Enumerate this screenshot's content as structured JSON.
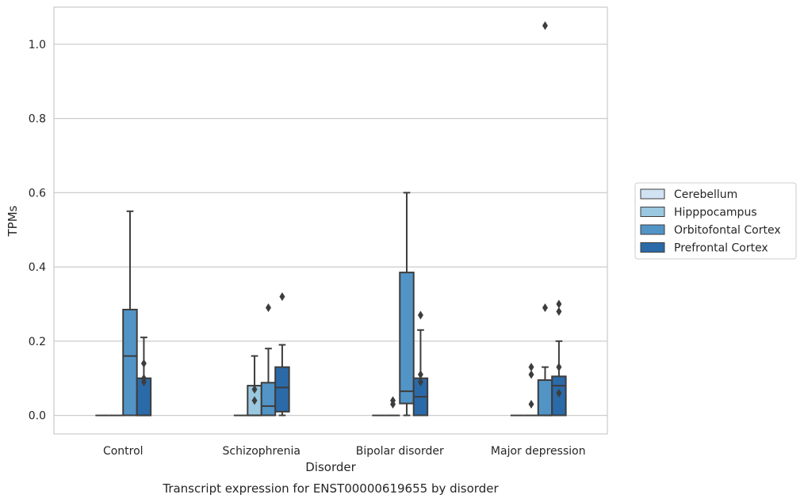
{
  "chart_data": {
    "type": "box",
    "caption": "Transcript expression for ENST00000619655 by disorder",
    "xlabel": "Disorder",
    "ylabel": "TPMs",
    "ylim": [
      -0.05,
      1.1
    ],
    "yticks": [
      0.0,
      0.2,
      0.4,
      0.6,
      0.8,
      1.0
    ],
    "grid": true,
    "legend_position": "right",
    "categories": [
      "Control",
      "Schizophrenia",
      "Bipolar disorder",
      "Major depression"
    ],
    "series": [
      {
        "name": "Cerebellum",
        "color": "#d1e2f2",
        "boxes": [
          {
            "whislo": 0,
            "q1": 0,
            "med": 0,
            "q3": 0,
            "whishi": 0,
            "fliers": []
          },
          {
            "whislo": 0,
            "q1": 0,
            "med": 0,
            "q3": 0,
            "whishi": 0,
            "fliers": []
          },
          {
            "whislo": 0,
            "q1": 0,
            "med": 0,
            "q3": 0,
            "whishi": 0,
            "fliers": []
          },
          {
            "whislo": 0,
            "q1": 0,
            "med": 0,
            "q3": 0,
            "whishi": 0,
            "fliers": []
          }
        ]
      },
      {
        "name": "Hipppocampus",
        "color": "#9ac8e0",
        "boxes": [
          {
            "whislo": 0,
            "q1": 0,
            "med": 0,
            "q3": 0,
            "whishi": 0,
            "fliers": []
          },
          {
            "whislo": 0,
            "q1": 0,
            "med": 0,
            "q3": 0.08,
            "whishi": 0.16,
            "fliers": [
              0.04,
              0.07
            ]
          },
          {
            "whislo": 0,
            "q1": 0,
            "med": 0,
            "q3": 0,
            "whishi": 0,
            "fliers": [
              0.03,
              0.04
            ]
          },
          {
            "whislo": 0,
            "q1": 0,
            "med": 0,
            "q3": 0,
            "whishi": 0,
            "fliers": [
              0.03,
              0.11,
              0.13
            ]
          }
        ]
      },
      {
        "name": "Orbitofontal Cortex",
        "color": "#5294c6",
        "boxes": [
          {
            "whislo": 0,
            "q1": 0,
            "med": 0.16,
            "q3": 0.285,
            "whishi": 0.55,
            "fliers": []
          },
          {
            "whislo": 0,
            "q1": 0,
            "med": 0.025,
            "q3": 0.088,
            "whishi": 0.18,
            "fliers": [
              0.29
            ]
          },
          {
            "whislo": 0,
            "q1": 0.032,
            "med": 0.065,
            "q3": 0.385,
            "whishi": 0.6,
            "fliers": []
          },
          {
            "whislo": 0,
            "q1": 0,
            "med": 0,
            "q3": 0.095,
            "whishi": 0.13,
            "fliers": [
              0.29,
              1.05
            ]
          }
        ]
      },
      {
        "name": "Prefrontal Cortex",
        "color": "#2b6aa8",
        "boxes": [
          {
            "whislo": 0,
            "q1": 0,
            "med": 0,
            "q3": 0.1,
            "whishi": 0.21,
            "fliers": [
              0.09,
              0.1,
              0.14
            ]
          },
          {
            "whislo": 0,
            "q1": 0.01,
            "med": 0.075,
            "q3": 0.13,
            "whishi": 0.19,
            "fliers": [
              0.32
            ]
          },
          {
            "whislo": 0,
            "q1": 0,
            "med": 0.05,
            "q3": 0.1,
            "whishi": 0.23,
            "fliers": [
              0.09,
              0.11,
              0.27
            ]
          },
          {
            "whislo": 0,
            "q1": 0,
            "med": 0.08,
            "q3": 0.105,
            "whishi": 0.2,
            "fliers": [
              0.06,
              0.13,
              0.28,
              0.3
            ]
          }
        ]
      }
    ]
  }
}
